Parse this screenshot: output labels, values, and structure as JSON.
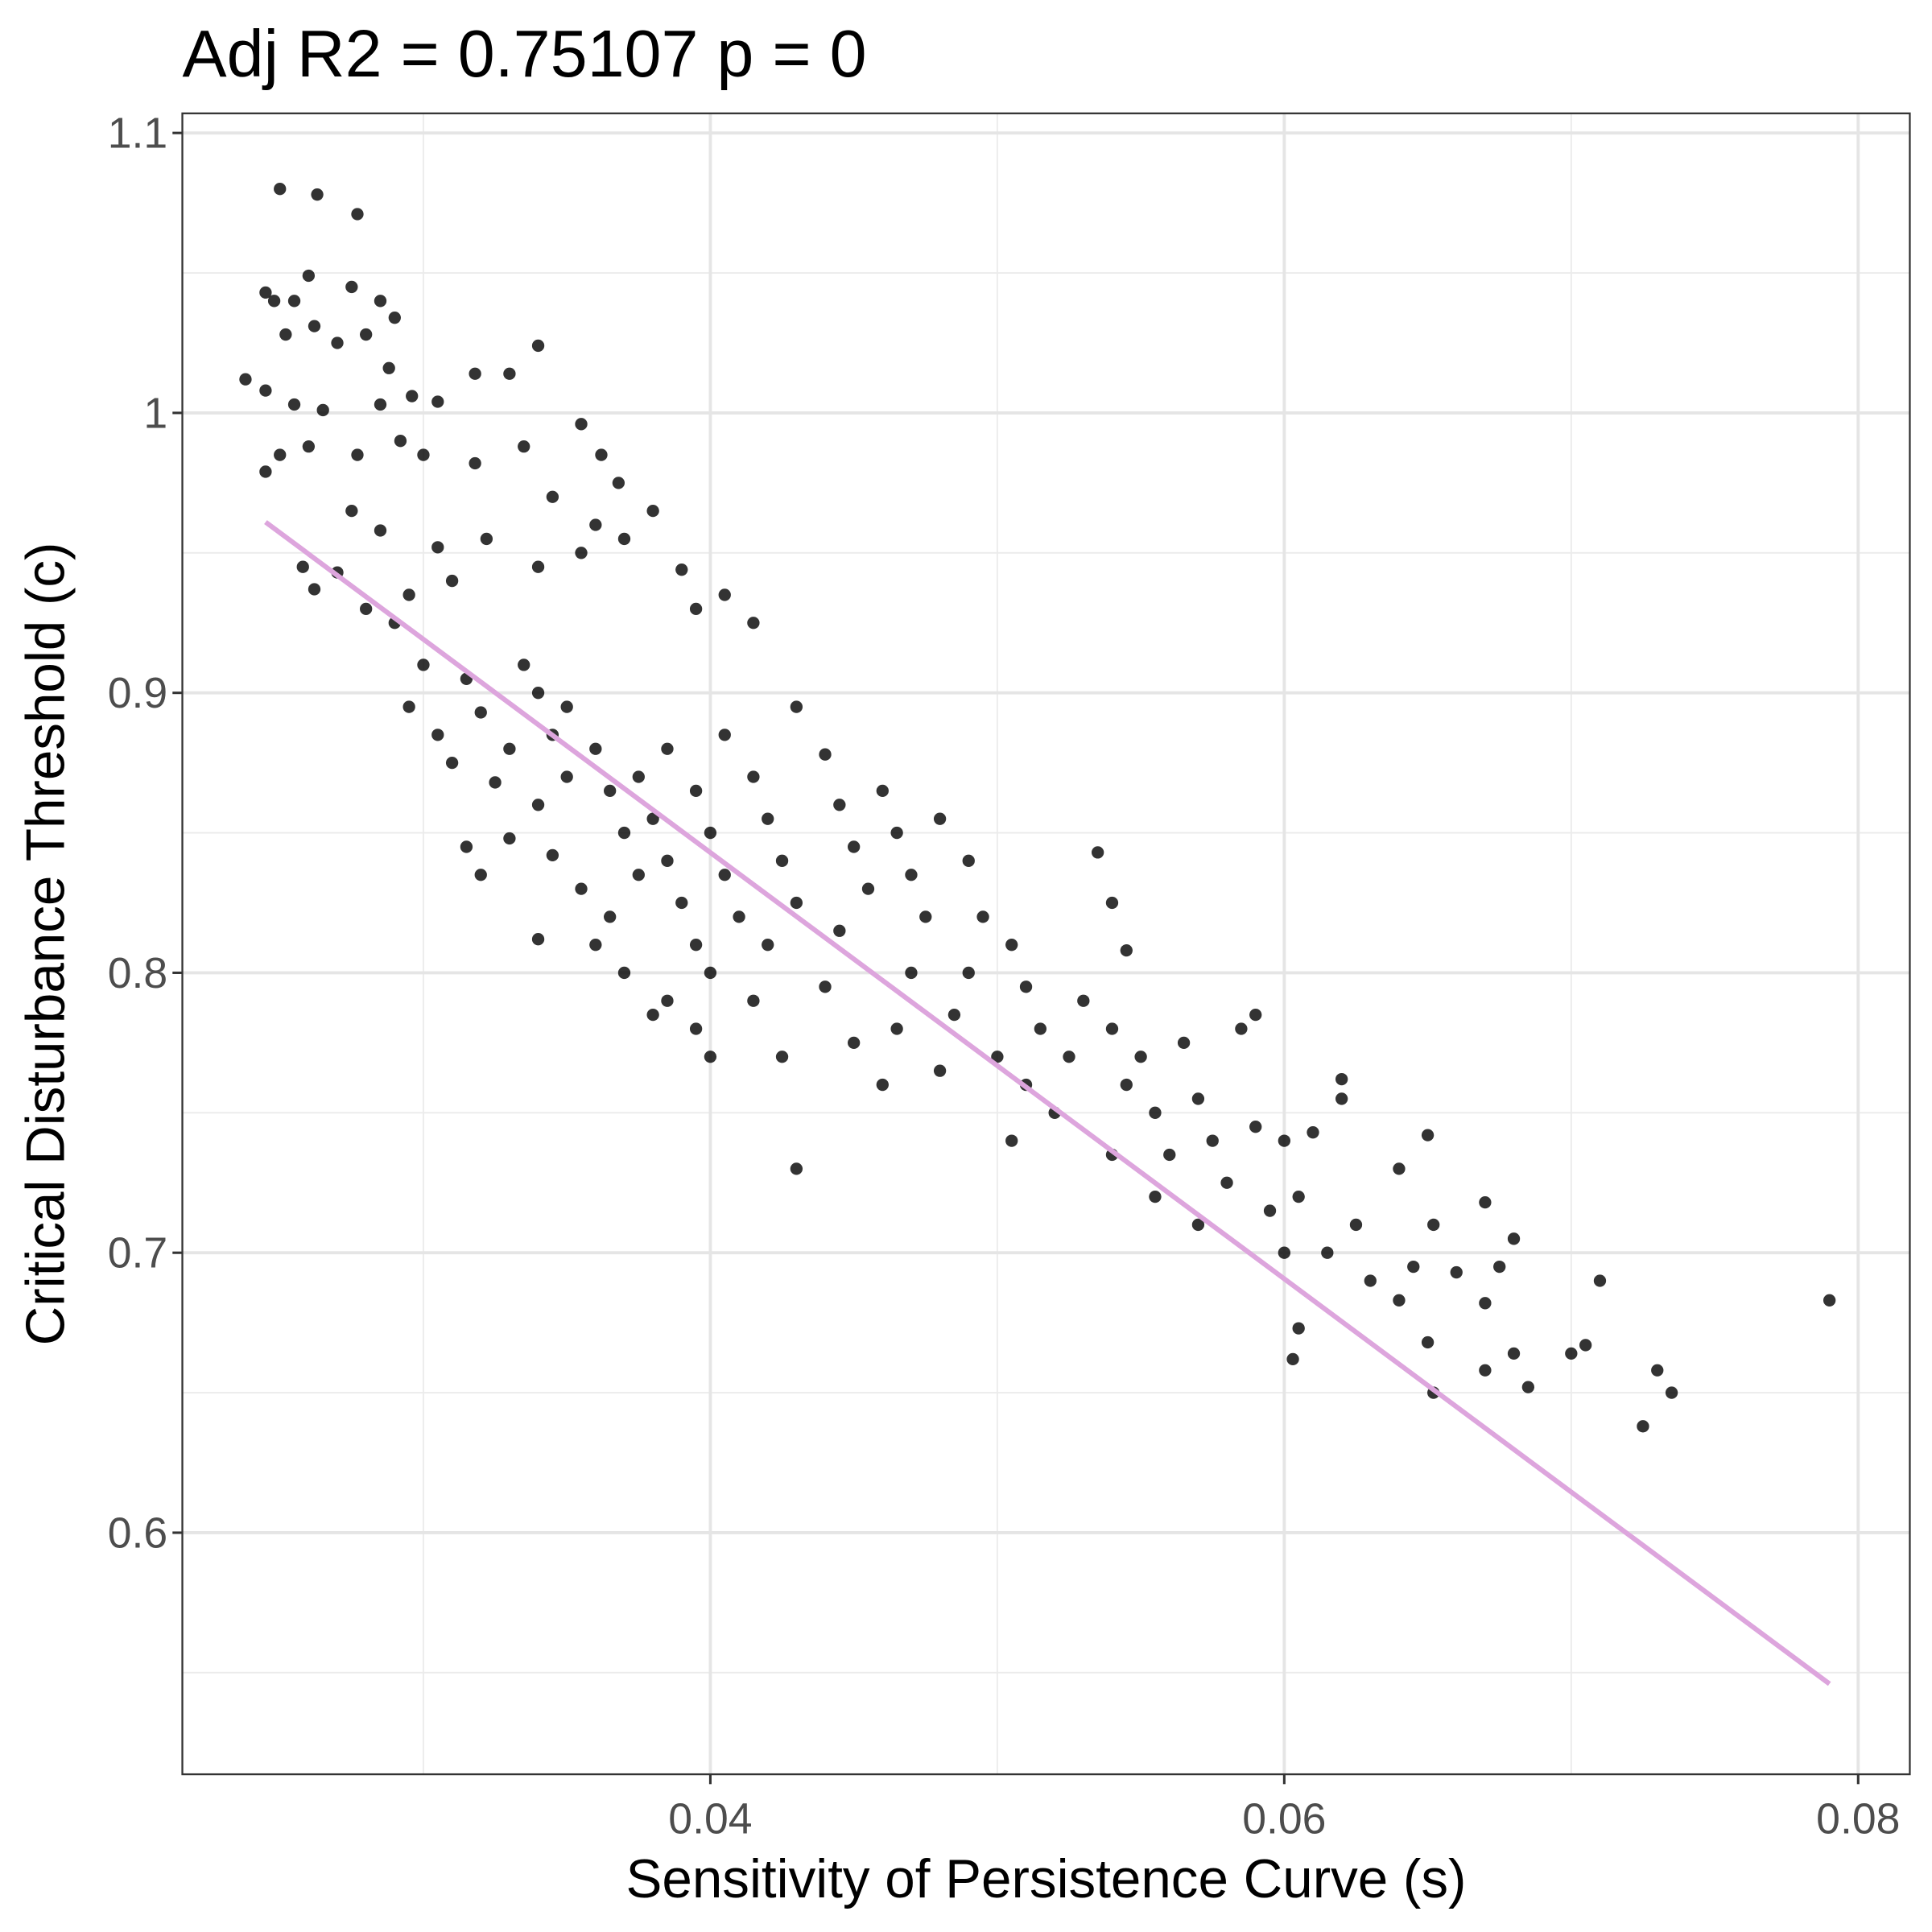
{
  "chart_data": {
    "type": "scatter",
    "title": "Adj R2 =  0.75107  p = 0",
    "x_label": "Sensitivity of Persistence Curve (s)",
    "y_label": "Critical Disturbance Threshold (c)",
    "xlim": [
      0.0216,
      0.0818
    ],
    "ylim": [
      0.5137,
      1.107
    ],
    "xticks": [
      0.04,
      0.06,
      0.08
    ],
    "yticks": [
      0.6,
      0.7,
      0.8,
      0.9,
      1.0,
      1.1
    ],
    "x_minor_grid": [
      0.03,
      0.05,
      0.07
    ],
    "y_minor_grid": [
      0.55,
      0.65,
      0.75,
      0.85,
      0.95,
      1.05
    ],
    "grid": true,
    "color": "#000000",
    "x": [
      0.025,
      0.0263,
      0.0277,
      0.0245,
      0.0248,
      0.0255,
      0.026,
      0.0275,
      0.0285,
      0.029,
      0.0238,
      0.0252,
      0.0262,
      0.027,
      0.028,
      0.0288,
      0.0296,
      0.0305,
      0.0318,
      0.034,
      0.033,
      0.0245,
      0.0255,
      0.0265,
      0.0285,
      0.025,
      0.0245,
      0.026,
      0.0277,
      0.0292,
      0.03,
      0.0318,
      0.0335,
      0.0355,
      0.0362,
      0.0368,
      0.038,
      0.036,
      0.0345,
      0.0258,
      0.0262,
      0.027,
      0.0275,
      0.0285,
      0.0305,
      0.028,
      0.0295,
      0.031,
      0.0322,
      0.034,
      0.0355,
      0.037,
      0.039,
      0.0405,
      0.0415,
      0.0395,
      0.029,
      0.03,
      0.0295,
      0.0305,
      0.0315,
      0.032,
      0.031,
      0.0325,
      0.0315,
      0.032,
      0.033,
      0.033,
      0.0335,
      0.034,
      0.0345,
      0.035,
      0.034,
      0.0345,
      0.0355,
      0.034,
      0.036,
      0.035,
      0.036,
      0.0365,
      0.037,
      0.0375,
      0.0365,
      0.037,
      0.038,
      0.0375,
      0.038,
      0.0385,
      0.039,
      0.0395,
      0.0385,
      0.0395,
      0.04,
      0.0405,
      0.041,
      0.04,
      0.0395,
      0.0405,
      0.0415,
      0.042,
      0.0425,
      0.043,
      0.042,
      0.0415,
      0.0425,
      0.043,
      0.044,
      0.0445,
      0.045,
      0.0455,
      0.0445,
      0.044,
      0.045,
      0.046,
      0.0465,
      0.047,
      0.0475,
      0.047,
      0.0465,
      0.046,
      0.048,
      0.049,
      0.0495,
      0.049,
      0.0485,
      0.048,
      0.05,
      0.0505,
      0.051,
      0.0515,
      0.051,
      0.0505,
      0.052,
      0.0525,
      0.053,
      0.0535,
      0.054,
      0.0545,
      0.054,
      0.0545,
      0.054,
      0.055,
      0.0555,
      0.056,
      0.0555,
      0.0565,
      0.057,
      0.0575,
      0.058,
      0.057,
      0.0585,
      0.059,
      0.059,
      0.0595,
      0.06,
      0.0605,
      0.06,
      0.061,
      0.062,
      0.062,
      0.0605,
      0.0603,
      0.0615,
      0.0625,
      0.063,
      0.064,
      0.0645,
      0.064,
      0.065,
      0.0652,
      0.065,
      0.0652,
      0.066,
      0.067,
      0.0675,
      0.068,
      0.067,
      0.067,
      0.068,
      0.0685,
      0.07,
      0.0705,
      0.071,
      0.0725,
      0.073,
      0.0735,
      0.079,
      0.043,
      0.04,
      0.0385
    ],
    "values": [
      1.08,
      1.078,
      1.071,
      1.043,
      1.04,
      1.04,
      1.049,
      1.045,
      1.04,
      1.034,
      1.012,
      1.028,
      1.031,
      1.025,
      1.028,
      1.016,
      1.006,
      1.004,
      1.014,
      1.024,
      1.014,
      1.008,
      1.003,
      1.001,
      1.003,
      0.985,
      0.979,
      0.988,
      0.985,
      0.99,
      0.985,
      0.982,
      0.988,
      0.996,
      0.985,
      0.975,
      0.965,
      0.96,
      0.97,
      0.945,
      0.937,
      0.943,
      0.965,
      0.958,
      0.952,
      0.93,
      0.935,
      0.94,
      0.955,
      0.945,
      0.95,
      0.955,
      0.944,
      0.935,
      0.925,
      0.93,
      0.925,
      0.91,
      0.895,
      0.885,
      0.905,
      0.893,
      0.875,
      0.868,
      0.845,
      0.835,
      0.848,
      0.88,
      0.91,
      0.9,
      0.885,
      0.87,
      0.86,
      0.842,
      0.83,
      0.812,
      0.81,
      0.895,
      0.88,
      0.865,
      0.85,
      0.835,
      0.82,
      0.8,
      0.785,
      0.87,
      0.855,
      0.84,
      0.825,
      0.81,
      0.88,
      0.865,
      0.85,
      0.835,
      0.82,
      0.8,
      0.78,
      0.885,
      0.87,
      0.855,
      0.84,
      0.825,
      0.81,
      0.79,
      0.77,
      0.895,
      0.878,
      0.86,
      0.845,
      0.83,
      0.815,
      0.795,
      0.775,
      0.865,
      0.85,
      0.835,
      0.82,
      0.8,
      0.78,
      0.76,
      0.855,
      0.84,
      0.82,
      0.8,
      0.785,
      0.765,
      0.77,
      0.81,
      0.795,
      0.78,
      0.76,
      0.74,
      0.75,
      0.77,
      0.79,
      0.843,
      0.825,
      0.808,
      0.78,
      0.76,
      0.735,
      0.77,
      0.75,
      0.735,
      0.72,
      0.775,
      0.755,
      0.74,
      0.725,
      0.71,
      0.78,
      0.785,
      0.745,
      0.715,
      0.74,
      0.72,
      0.7,
      0.743,
      0.762,
      0.755,
      0.673,
      0.662,
      0.7,
      0.71,
      0.69,
      0.73,
      0.695,
      0.683,
      0.742,
      0.71,
      0.668,
      0.65,
      0.693,
      0.718,
      0.695,
      0.705,
      0.682,
      0.658,
      0.664,
      0.652,
      0.664,
      0.667,
      0.69,
      0.638,
      0.658,
      0.65,
      0.683,
      0.73,
      0.77,
      0.79
    ],
    "fit": {
      "type": "line",
      "x": [
        0.0245,
        0.079
      ],
      "values": [
        0.961,
        0.546
      ],
      "color": "#dda5dd"
    }
  }
}
